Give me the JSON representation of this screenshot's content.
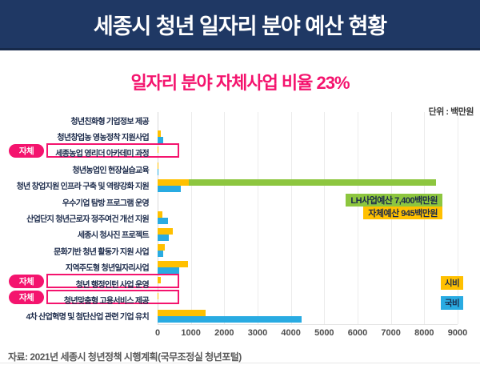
{
  "header": {
    "title": "세종시 청년 일자리 분야 예산 현황"
  },
  "subtitle": "일자리 분야  자체사업 비율 23%",
  "unit_label": "단위 : 백만원",
  "badge_label": "자체",
  "source": "자료: 2021년 세종시 청년정책 시행계획(국무조정실 청년포털)",
  "colors": {
    "header_bg": "#1F3864",
    "pink": "#F4146E",
    "sibi_yellow": "#FFC000",
    "gukbi_blue": "#29ABE2",
    "lh_green": "#8DC63F"
  },
  "legend": [
    {
      "label": "시비",
      "color": "#FFC000"
    },
    {
      "label": "국비",
      "color": "#29ABE2"
    }
  ],
  "annotations": [
    {
      "text": "LH사업예산 7,400백만원",
      "bg": "#8DC63F"
    },
    {
      "text": "자체예산 945백만원",
      "bg": "#FFC000"
    }
  ],
  "chart_data": {
    "type": "bar",
    "orientation": "horizontal",
    "title": "세종시 청년 일자리 분야 예산 현황",
    "unit": "백만원",
    "xlim": [
      0,
      9000
    ],
    "xticks": [
      0,
      1000,
      2000,
      3000,
      4000,
      5000,
      6000,
      7000,
      8000,
      9000
    ],
    "grid": true,
    "legend_position": "right",
    "categories": [
      "청년친화형 기업정보 제공",
      "청년창업농 영농정착 지원사업",
      "세종농업 영리더 아카데미 과정",
      "청년농업인 현장실습교육",
      "청년 창업지원 인프라 구축 및 역량강화 지원",
      "우수기업 탐방 프로그램 운영",
      "산업단지 청년근로자 정주여건 개선 지원",
      "세종시 청사진 프로젝트",
      "문화기반 청년 활동가 지원 사업",
      "지역주도형 청년일자리사업",
      "청년 행정인턴 사업 운영",
      "청년맞춤형 고용서비스 제공",
      "4차 산업혁명 및 첨단산업 관련 기업 유치"
    ],
    "series": [
      {
        "name": "시비",
        "color": "#FFC000",
        "values": [
          0,
          90,
          15,
          25,
          945,
          0,
          145,
          455,
          215,
          900,
          100,
          10,
          1440
        ]
      },
      {
        "name": "국비",
        "color": "#29ABE2",
        "values": [
          0,
          175,
          0,
          20,
          700,
          0,
          300,
          335,
          175,
          650,
          0,
          0,
          4320
        ]
      },
      {
        "name": "LH사업예산",
        "color": "#8DC63F",
        "stacked_on": "시비",
        "values": [
          0,
          0,
          0,
          0,
          7400,
          0,
          0,
          0,
          0,
          0,
          0,
          0,
          0
        ]
      }
    ],
    "self_funded_rows": [
      2,
      10,
      11
    ],
    "callouts": [
      {
        "row": 4,
        "text": "LH사업예산 7,400백만원",
        "value": 7400
      },
      {
        "row": 4,
        "text": "자체예산 945백만원",
        "value": 945
      }
    ]
  }
}
